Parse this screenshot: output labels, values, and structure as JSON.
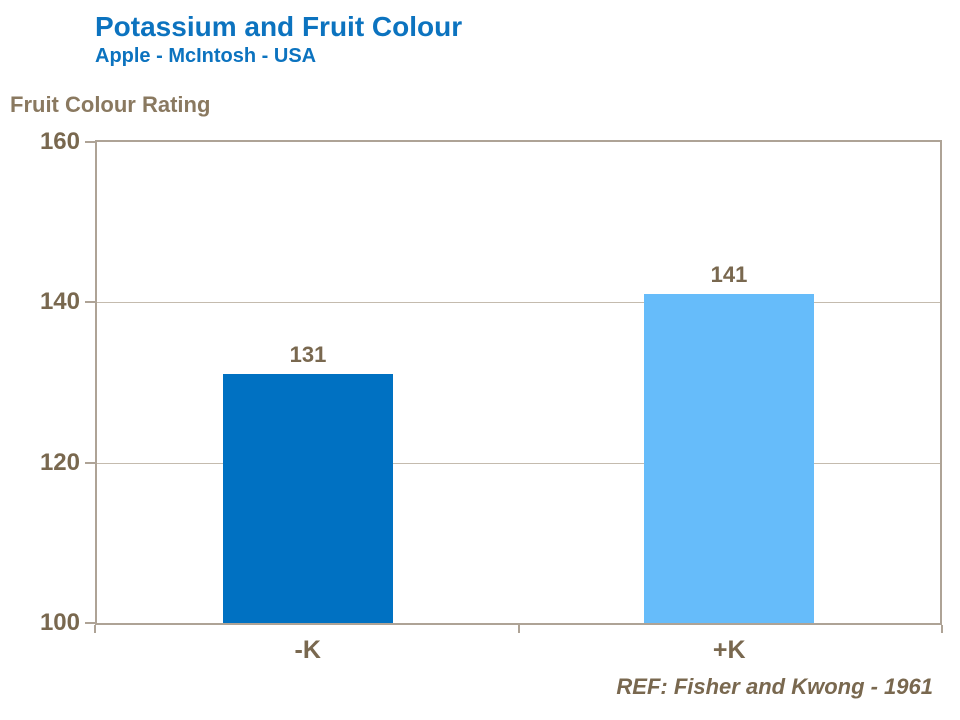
{
  "header": {
    "title": "Potassium and Fruit Colour",
    "subtitle": "Apple - McIntosh - USA"
  },
  "footer": {
    "reference": "REF: Fisher and Kwong - 1961"
  },
  "chart_data": {
    "type": "bar",
    "title": "Potassium and Fruit Colour",
    "subtitle": "Apple - McIntosh - USA",
    "xlabel": "",
    "ylabel": "Fruit Colour Rating",
    "categories": [
      "-K",
      "+K"
    ],
    "values": [
      131,
      141
    ],
    "data_labels": [
      "131",
      "141"
    ],
    "bar_colors": [
      "#0071C2",
      "#66BCFA"
    ],
    "ylim": [
      100,
      160
    ],
    "yticks": [
      100,
      120,
      140,
      160
    ],
    "grid": "horizontal gridlines at interior y-ticks",
    "legend": "none",
    "annotations": [
      "REF: Fisher and Kwong - 1961"
    ]
  },
  "colors": {
    "background": "#FFFFFF",
    "title_blue": "#0C73BF",
    "text_brown": "#79684F",
    "text_brown_light": "#8A7960",
    "axis_frame": "#AEA396",
    "gridline": "#C4BBAE",
    "bar_dark_blue": "#0071C2",
    "bar_light_blue": "#66BCFA"
  }
}
